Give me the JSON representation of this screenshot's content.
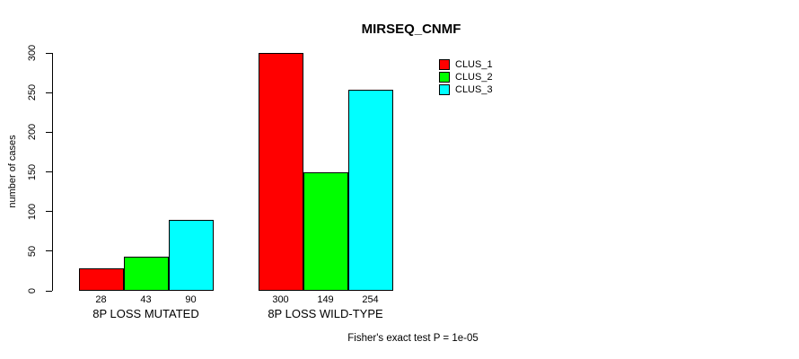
{
  "title": "MIRSEQ_CNMF",
  "y_axis": {
    "label": "number of cases",
    "tick_labels": [
      "0",
      "50",
      "100",
      "150",
      "200",
      "250",
      "300"
    ]
  },
  "footer": "Fisher's exact test P = 1e-05",
  "chart_data": {
    "type": "bar",
    "title": "MIRSEQ_CNMF",
    "xlabel": "",
    "ylabel": "number of cases",
    "ylim": [
      0,
      300
    ],
    "yticks": [
      0,
      50,
      100,
      150,
      200,
      250,
      300
    ],
    "grid": false,
    "legend_position": "top-right",
    "categories": [
      "8P LOSS MUTATED",
      "8P LOSS WILD-TYPE"
    ],
    "series": [
      {
        "name": "CLUS_1",
        "color": "#FF0000",
        "values": [
          28,
          300
        ]
      },
      {
        "name": "CLUS_2",
        "color": "#00FF00",
        "values": [
          43,
          149
        ]
      },
      {
        "name": "CLUS_3",
        "color": "#00FFFF",
        "values": [
          90,
          254
        ]
      }
    ],
    "bar_value_labels_shown": true,
    "annotation": "Fisher's exact test P = 1e-05"
  }
}
